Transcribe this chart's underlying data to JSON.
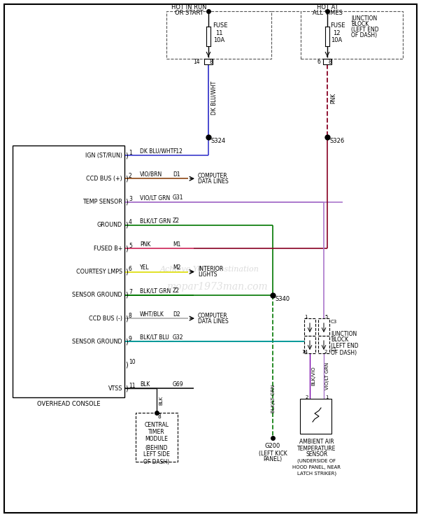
{
  "bg_color": "#ffffff",
  "wire_colors": {
    "dk_blu_wht": "#3a3acc",
    "vio_brn": "#8B4513",
    "vio_lt_grn": "#aa77cc",
    "blk_lt_grn": "#007700",
    "pnk": "#cc2255",
    "yel": "#dddd00",
    "wht_blk": "#aaaaaa",
    "blk_lt_blu": "#009999",
    "blk": "#111111",
    "blk_vio": "#7700aa",
    "dark_red": "#880022"
  },
  "pins": [
    {
      "num": "1",
      "label": "IGN (ST/RUN)",
      "wire": "DK BLU/WHT",
      "dest": "F12",
      "wkey": "dk_blu_wht",
      "arrow": false
    },
    {
      "num": "2",
      "label": "CCD BUS (+)",
      "wire": "VIO/BRN",
      "dest": "D1",
      "wkey": "vio_brn",
      "arrow": true,
      "alabel1": "COMPUTER",
      "alabel2": "DATA LINES"
    },
    {
      "num": "3",
      "label": "TEMP SENSOR",
      "wire": "VIO/LT GRN",
      "dest": "G31",
      "wkey": "vio_lt_grn",
      "arrow": false
    },
    {
      "num": "4",
      "label": "GROUND",
      "wire": "BLK/LT GRN",
      "dest": "Z2",
      "wkey": "blk_lt_grn",
      "arrow": false
    },
    {
      "num": "5",
      "label": "FUSED B+",
      "wire": "PNK",
      "dest": "M1",
      "wkey": "pnk",
      "arrow": false
    },
    {
      "num": "6",
      "label": "COURTESY LMPS",
      "wire": "YEL",
      "dest": "M2",
      "wkey": "yel",
      "arrow": true,
      "alabel1": "INTERIOR",
      "alabel2": "LIGHTS"
    },
    {
      "num": "7",
      "label": "SENSOR GROUND",
      "wire": "BLK/LT GRN",
      "dest": "Z2",
      "wkey": "blk_lt_grn",
      "arrow": false
    },
    {
      "num": "8",
      "label": "CCD BUS (-)",
      "wire": "WHT/BLK",
      "dest": "D2",
      "wkey": "wht_blk",
      "arrow": true,
      "alabel1": "COMPUTER",
      "alabel2": "DATA LINES"
    },
    {
      "num": "9",
      "label": "SENSOR GROUND",
      "wire": "BLK/LT BLU",
      "dest": "G32",
      "wkey": "blk_lt_blu",
      "arrow": false
    },
    {
      "num": "10",
      "label": "",
      "wire": "",
      "dest": "",
      "wkey": "blk",
      "arrow": false
    },
    {
      "num": "11",
      "label": "VTSS",
      "wire": "BLK",
      "dest": "G69",
      "wkey": "blk",
      "arrow": false
    }
  ]
}
